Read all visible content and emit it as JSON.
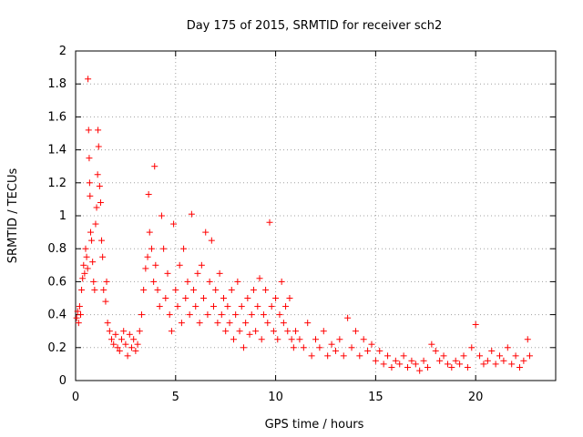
{
  "chart_data": {
    "type": "scatter",
    "title": "Day 175 of 2015, SRMTID for receiver sch2",
    "xlabel": "GPS time / hours",
    "ylabel": "SRMTID / TECUs",
    "xlim": [
      0,
      24
    ],
    "ylim": [
      0,
      2
    ],
    "x_ticks": [
      "0",
      "5",
      "10",
      "15",
      "20"
    ],
    "y_ticks": [
      "0",
      "0.2",
      "0.4",
      "0.6",
      "0.8",
      "1",
      "1.2",
      "1.4",
      "1.6",
      "1.8",
      "2"
    ],
    "grid": true,
    "marker": "+",
    "series": [
      {
        "name": "sch2",
        "color": "#ff0000",
        "points": [
          [
            0.05,
            0.38
          ],
          [
            0.1,
            0.42
          ],
          [
            0.15,
            0.35
          ],
          [
            0.2,
            0.45
          ],
          [
            0.25,
            0.4
          ],
          [
            0.3,
            0.55
          ],
          [
            0.35,
            0.62
          ],
          [
            0.4,
            0.7
          ],
          [
            0.45,
            0.65
          ],
          [
            0.5,
            0.8
          ],
          [
            0.55,
            0.75
          ],
          [
            0.6,
            0.68
          ],
          [
            0.62,
            1.83
          ],
          [
            0.65,
            1.52
          ],
          [
            0.68,
            1.35
          ],
          [
            0.7,
            1.2
          ],
          [
            0.72,
            1.12
          ],
          [
            0.75,
            0.9
          ],
          [
            0.8,
            0.85
          ],
          [
            0.85,
            0.72
          ],
          [
            0.9,
            0.6
          ],
          [
            0.95,
            0.55
          ],
          [
            1.0,
            0.95
          ],
          [
            1.05,
            1.05
          ],
          [
            1.1,
            1.25
          ],
          [
            1.12,
            1.52
          ],
          [
            1.15,
            1.42
          ],
          [
            1.2,
            1.18
          ],
          [
            1.25,
            1.08
          ],
          [
            1.3,
            0.85
          ],
          [
            1.35,
            0.75
          ],
          [
            1.4,
            0.55
          ],
          [
            1.5,
            0.48
          ],
          [
            1.55,
            0.6
          ],
          [
            1.6,
            0.35
          ],
          [
            1.7,
            0.3
          ],
          [
            1.8,
            0.25
          ],
          [
            1.9,
            0.22
          ],
          [
            2.0,
            0.28
          ],
          [
            2.1,
            0.2
          ],
          [
            2.2,
            0.18
          ],
          [
            2.3,
            0.25
          ],
          [
            2.4,
            0.3
          ],
          [
            2.5,
            0.22
          ],
          [
            2.6,
            0.15
          ],
          [
            2.7,
            0.28
          ],
          [
            2.8,
            0.2
          ],
          [
            2.9,
            0.25
          ],
          [
            3.0,
            0.18
          ],
          [
            3.1,
            0.22
          ],
          [
            3.2,
            0.3
          ],
          [
            3.3,
            0.4
          ],
          [
            3.4,
            0.55
          ],
          [
            3.5,
            0.68
          ],
          [
            3.6,
            0.75
          ],
          [
            3.65,
            1.13
          ],
          [
            3.7,
            0.9
          ],
          [
            3.8,
            0.8
          ],
          [
            3.9,
            0.6
          ],
          [
            3.95,
            1.3
          ],
          [
            4.0,
            0.7
          ],
          [
            4.1,
            0.55
          ],
          [
            4.2,
            0.45
          ],
          [
            4.3,
            1.0
          ],
          [
            4.4,
            0.8
          ],
          [
            4.5,
            0.5
          ],
          [
            4.6,
            0.65
          ],
          [
            4.7,
            0.4
          ],
          [
            4.8,
            0.3
          ],
          [
            4.9,
            0.95
          ],
          [
            5.0,
            0.55
          ],
          [
            5.1,
            0.45
          ],
          [
            5.2,
            0.7
          ],
          [
            5.3,
            0.35
          ],
          [
            5.4,
            0.8
          ],
          [
            5.5,
            0.5
          ],
          [
            5.6,
            0.6
          ],
          [
            5.7,
            0.4
          ],
          [
            5.8,
            1.01
          ],
          [
            5.9,
            0.55
          ],
          [
            6.0,
            0.45
          ],
          [
            6.1,
            0.65
          ],
          [
            6.2,
            0.35
          ],
          [
            6.3,
            0.7
          ],
          [
            6.4,
            0.5
          ],
          [
            6.5,
            0.9
          ],
          [
            6.6,
            0.4
          ],
          [
            6.7,
            0.6
          ],
          [
            6.8,
            0.85
          ],
          [
            6.9,
            0.45
          ],
          [
            7.0,
            0.55
          ],
          [
            7.1,
            0.35
          ],
          [
            7.2,
            0.65
          ],
          [
            7.3,
            0.4
          ],
          [
            7.4,
            0.5
          ],
          [
            7.5,
            0.3
          ],
          [
            7.6,
            0.45
          ],
          [
            7.7,
            0.35
          ],
          [
            7.8,
            0.55
          ],
          [
            7.9,
            0.25
          ],
          [
            8.0,
            0.4
          ],
          [
            8.1,
            0.6
          ],
          [
            8.2,
            0.3
          ],
          [
            8.3,
            0.45
          ],
          [
            8.4,
            0.2
          ],
          [
            8.5,
            0.35
          ],
          [
            8.6,
            0.5
          ],
          [
            8.7,
            0.28
          ],
          [
            8.8,
            0.4
          ],
          [
            8.9,
            0.55
          ],
          [
            9.0,
            0.3
          ],
          [
            9.1,
            0.45
          ],
          [
            9.2,
            0.62
          ],
          [
            9.3,
            0.25
          ],
          [
            9.4,
            0.4
          ],
          [
            9.5,
            0.55
          ],
          [
            9.6,
            0.35
          ],
          [
            9.7,
            0.96
          ],
          [
            9.8,
            0.45
          ],
          [
            9.9,
            0.3
          ],
          [
            10.0,
            0.5
          ],
          [
            10.1,
            0.25
          ],
          [
            10.2,
            0.4
          ],
          [
            10.3,
            0.6
          ],
          [
            10.4,
            0.35
          ],
          [
            10.5,
            0.45
          ],
          [
            10.6,
            0.3
          ],
          [
            10.7,
            0.5
          ],
          [
            10.8,
            0.25
          ],
          [
            10.9,
            0.2
          ],
          [
            11.0,
            0.3
          ],
          [
            11.2,
            0.25
          ],
          [
            11.4,
            0.2
          ],
          [
            11.6,
            0.35
          ],
          [
            11.8,
            0.15
          ],
          [
            12.0,
            0.25
          ],
          [
            12.2,
            0.2
          ],
          [
            12.4,
            0.3
          ],
          [
            12.6,
            0.15
          ],
          [
            12.8,
            0.22
          ],
          [
            13.0,
            0.18
          ],
          [
            13.2,
            0.25
          ],
          [
            13.4,
            0.15
          ],
          [
            13.6,
            0.38
          ],
          [
            13.8,
            0.2
          ],
          [
            14.0,
            0.3
          ],
          [
            14.2,
            0.15
          ],
          [
            14.4,
            0.25
          ],
          [
            14.6,
            0.18
          ],
          [
            14.8,
            0.22
          ],
          [
            15.0,
            0.12
          ],
          [
            15.2,
            0.18
          ],
          [
            15.4,
            0.1
          ],
          [
            15.6,
            0.15
          ],
          [
            15.8,
            0.08
          ],
          [
            16.0,
            0.12
          ],
          [
            16.2,
            0.1
          ],
          [
            16.4,
            0.15
          ],
          [
            16.6,
            0.08
          ],
          [
            16.8,
            0.12
          ],
          [
            17.0,
            0.1
          ],
          [
            17.2,
            0.06
          ],
          [
            17.4,
            0.12
          ],
          [
            17.6,
            0.08
          ],
          [
            17.8,
            0.22
          ],
          [
            18.0,
            0.18
          ],
          [
            18.2,
            0.12
          ],
          [
            18.4,
            0.15
          ],
          [
            18.6,
            0.1
          ],
          [
            18.8,
            0.08
          ],
          [
            19.0,
            0.12
          ],
          [
            19.2,
            0.1
          ],
          [
            19.4,
            0.15
          ],
          [
            19.6,
            0.08
          ],
          [
            19.8,
            0.2
          ],
          [
            20.0,
            0.34
          ],
          [
            20.2,
            0.15
          ],
          [
            20.4,
            0.1
          ],
          [
            20.6,
            0.12
          ],
          [
            20.8,
            0.18
          ],
          [
            21.0,
            0.1
          ],
          [
            21.2,
            0.15
          ],
          [
            21.4,
            0.12
          ],
          [
            21.6,
            0.2
          ],
          [
            21.8,
            0.1
          ],
          [
            22.0,
            0.15
          ],
          [
            22.2,
            0.08
          ],
          [
            22.4,
            0.12
          ],
          [
            22.6,
            0.25
          ],
          [
            22.7,
            0.15
          ]
        ]
      }
    ]
  }
}
